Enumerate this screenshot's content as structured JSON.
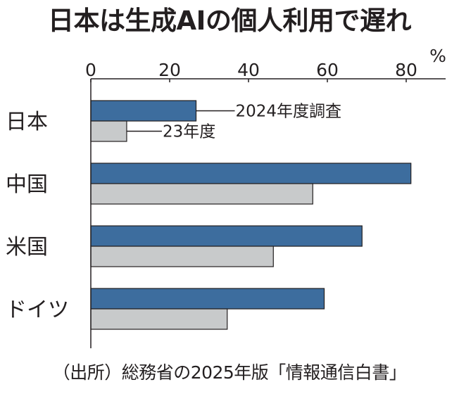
{
  "title": "日本は生成AIの個人利用で遅れ",
  "source": "（出所）総務省の2025年版「情報通信白書」",
  "colors": {
    "series_2024": "#3d6d9e",
    "series_23": "#c8cacb",
    "bar_stroke": "#231f20",
    "axis": "#231f20"
  },
  "chart_data": {
    "type": "bar",
    "orientation": "horizontal",
    "unit": "%",
    "xlim": [
      0,
      80
    ],
    "xticks": [
      0,
      20,
      40,
      60,
      80
    ],
    "grid": false,
    "categories": [
      "日本",
      "中国",
      "米国",
      "ドイツ"
    ],
    "series": [
      {
        "name": "2024年度調査",
        "values": [
          26.7,
          81.2,
          68.8,
          59.2
        ]
      },
      {
        "name": "23年度",
        "values": [
          9.1,
          56.3,
          46.3,
          34.6
        ]
      }
    ],
    "annotations": [
      {
        "text": "2024年度調査",
        "category": "日本",
        "series": 0
      },
      {
        "text": "23年度",
        "category": "日本",
        "series": 1
      }
    ]
  }
}
